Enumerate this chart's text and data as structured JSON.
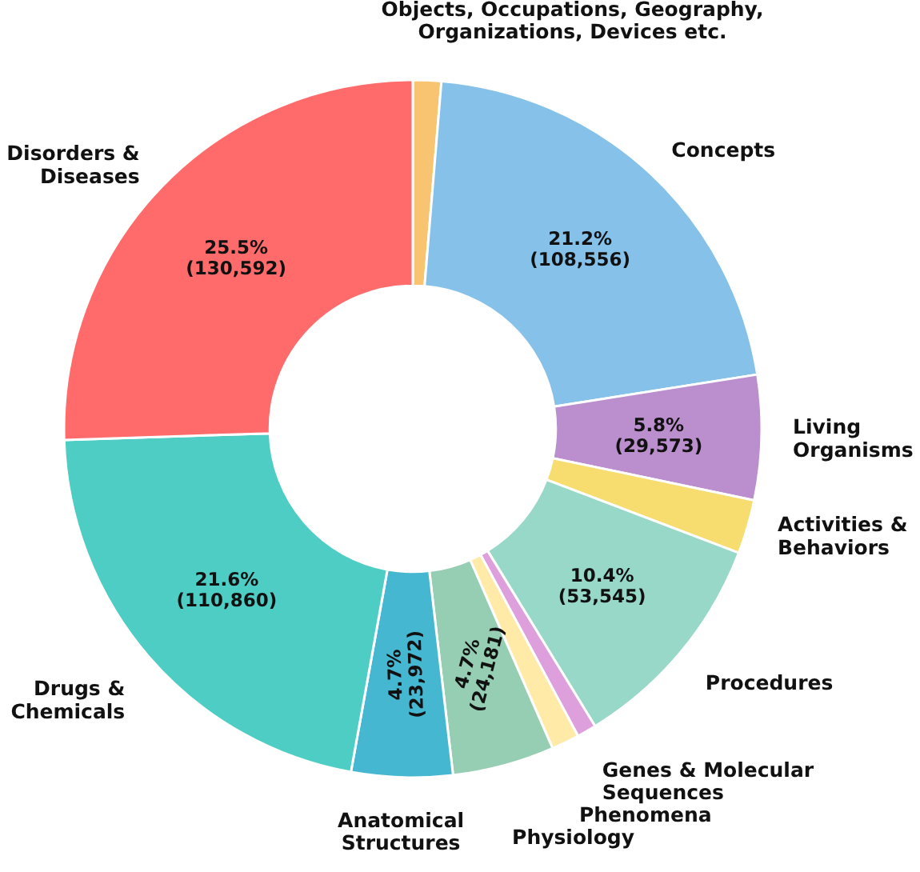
{
  "chart_data": {
    "type": "donut",
    "categories": [
      "Objects, Occupations, Geography,\nOrganizations, Devices etc.",
      "Concepts",
      "Living\nOrganisms",
      "Activities &\nBehaviors",
      "Procedures",
      "Genes & Molecular\nSequences",
      "Phenomena",
      "Physiology",
      "Anatomical\nStructures",
      "Drugs &\nChemicals",
      "Disorders &\nDiseases"
    ],
    "values": [
      6700,
      108556,
      29573,
      12800,
      53545,
      4600,
      6600,
      24181,
      23972,
      110860,
      130592
    ],
    "colors": [
      "#f8c471",
      "#85c1e9",
      "#bb8fce",
      "#f7dc6f",
      "#98d8c8",
      "#dda0dd",
      "#ffeaa7",
      "#96ceb4",
      "#45b7d1",
      "#4ecdc4",
      "#ff6b6b"
    ],
    "value_labels": [
      null,
      "21.2%\n(108,556)",
      "5.8%\n(29,573)",
      null,
      "10.4%\n(53,545)",
      null,
      null,
      "4.7%\n(24,181)",
      "4.7%\n(23,972)",
      "21.6%\n(110,860)",
      "25.5%\n(130,592)"
    ]
  }
}
